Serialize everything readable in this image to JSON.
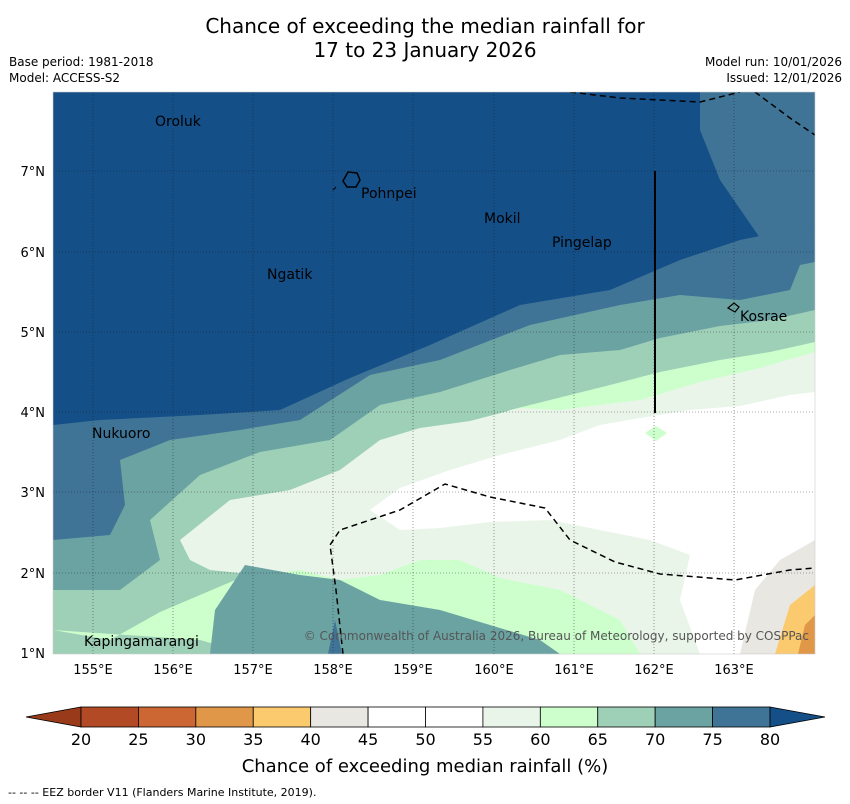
{
  "title": {
    "line1": "Chance of exceeding the median rainfall for",
    "line2": "17 to 23 January 2026"
  },
  "header": {
    "base_period": "Base period: 1981-2018",
    "model": "Model: ACCESS-S2",
    "model_run": "Model run: 10/01/2026",
    "issued": "Issued: 12/01/2026"
  },
  "map": {
    "lat_labels": [
      "7°N",
      "6°N",
      "5°N",
      "4°N",
      "3°N",
      "2°N",
      "1°N"
    ],
    "lon_labels": [
      "155°E",
      "156°E",
      "157°E",
      "158°E",
      "159°E",
      "160°E",
      "161°E",
      "162°E",
      "163°E"
    ],
    "places": [
      "Oroluk",
      "Pohnpei",
      "Mokil",
      "Pingelap",
      "Ngatik",
      "Kosrae",
      "Nukuoro",
      "Kapingamarangi"
    ],
    "copyright": "© Commonwealth of Australia 2026, Bureau of Meteorology, supported by COSPPac"
  },
  "colorbar": {
    "ticks": [
      "20",
      "25",
      "30",
      "35",
      "40",
      "45",
      "50",
      "55",
      "60",
      "65",
      "70",
      "75",
      "80"
    ],
    "colors": [
      "#b24a26",
      "#cc6633",
      "#e09748",
      "#fcca6e",
      "#e9e7e2",
      "#ffffff",
      "#ffffff",
      "#eaf5ea",
      "#ccffcc",
      "#9ecfb7",
      "#6ba3a3",
      "#3f7497"
    ],
    "low_color": "#993b1a",
    "high_color": "#144f88",
    "label": "Chance of exceeding median rainfall (%)"
  },
  "footnote": "--  --  -- EEZ border V11 (Flanders Marine Institute, 2019)."
}
